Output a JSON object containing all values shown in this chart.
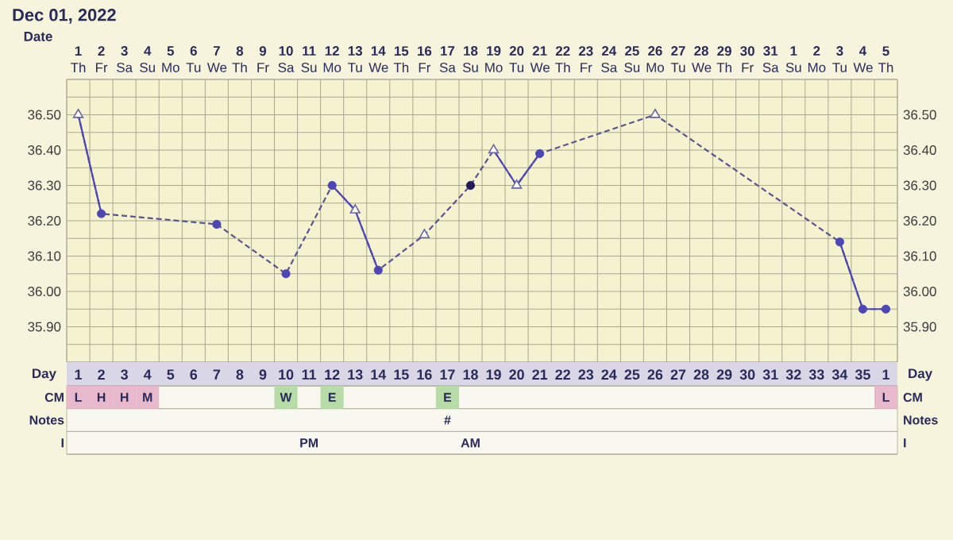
{
  "chart_data": [
    {
      "type": "line",
      "title": "Dec 01, 2022",
      "xlabel": "Date",
      "categories": [
        "**1** Th",
        "**2** Fr",
        "**3** Sa",
        "**4** Su",
        "**5** Mo",
        "**6** Tu",
        "**7** We",
        "**8** Th",
        "**9** Fr",
        "**10** Sa",
        "**11** Su",
        "**12** Mo",
        "**13** Tu",
        "**14** We",
        "**15** Th",
        "**16** Fr",
        "**17** Sa",
        "**18** Su",
        "**19** Mo",
        "**20** Tu",
        "**21** We",
        "**22** Th",
        "**23** Fr",
        "**24** Sa",
        "**25** Su",
        "**26** Mo",
        "**27** Tu",
        "**28** We",
        "**29** Th",
        "**30** Fr",
        "**31** Sa",
        "**1** Su",
        "**2** Mo",
        "**3** Tu",
        "**4** We",
        "**5** Th"
      ],
      "ylim": [
        35.8,
        36.6
      ],
      "y2lim": [
        35.8,
        36.6
      ],
      "yticks": [
        {
          "value": 35.8,
          "label": null
        },
        {
          "value": 35.85,
          "label": null
        },
        {
          "value": 35.9,
          "label": "35.90"
        },
        {
          "value": 35.95,
          "label": null
        },
        {
          "value": 36.0,
          "label": "36.00"
        },
        {
          "value": 36.05,
          "label": null
        },
        {
          "value": 36.1,
          "label": "36.10"
        },
        {
          "value": 36.15,
          "label": null
        },
        {
          "value": 36.2,
          "label": "36.20"
        },
        {
          "value": 36.25,
          "label": null
        },
        {
          "value": 36.3,
          "label": "36.30"
        },
        {
          "value": 36.35,
          "label": null
        },
        {
          "value": 36.4,
          "label": "36.40"
        },
        {
          "value": 36.45,
          "label": null
        },
        {
          "value": 36.5,
          "label": "36.50"
        },
        {
          "value": 36.55,
          "label": null
        },
        {
          "value": 36.6,
          "label": null
        }
      ],
      "y2ticks": [
        {
          "value": 35.8,
          "label": null
        },
        {
          "value": 35.85,
          "label": null
        },
        {
          "value": 35.9,
          "label": "35.90"
        },
        {
          "value": 35.95,
          "label": null
        },
        {
          "value": 36.0,
          "label": "36.00"
        },
        {
          "value": 36.05,
          "label": null
        },
        {
          "value": 36.1,
          "label": "36.10"
        },
        {
          "value": 36.15,
          "label": null
        },
        {
          "value": 36.2,
          "label": "36.20"
        },
        {
          "value": 36.25,
          "label": null
        },
        {
          "value": 36.3,
          "label": "36.30"
        },
        {
          "value": 36.35,
          "label": null
        },
        {
          "value": 36.4,
          "label": "36.40"
        },
        {
          "value": 36.45,
          "label": null
        },
        {
          "value": 36.5,
          "label": "36.50"
        },
        {
          "value": 36.55,
          "label": null
        },
        {
          "value": 36.6,
          "label": null
        }
      ],
      "grid": true,
      "series": [
        {
          "type": "line",
          "line_style": "dashed",
          "marker": "none",
          "color": "#5a5490",
          "values": [
            36.5,
            36.22,
            null,
            null,
            null,
            null,
            36.19,
            null,
            null,
            36.05,
            null,
            36.3,
            36.23,
            36.06,
            null,
            36.16,
            null,
            36.3,
            36.4,
            36.3,
            36.39,
            null,
            null,
            null,
            null,
            36.5,
            null,
            null,
            null,
            null,
            null,
            null,
            null,
            36.14,
            35.95,
            35.95
          ]
        },
        {
          "type": "line",
          "line_style": "solid",
          "marker": "none",
          "color": "#4e46b4",
          "values": [
            36.5,
            36.22,
            null,
            null,
            null,
            null,
            null,
            null,
            null,
            null,
            null,
            36.3,
            36.23,
            36.06,
            null,
            null,
            null,
            null,
            36.4,
            36.3,
            36.39,
            null,
            null,
            null,
            null,
            null,
            null,
            null,
            null,
            null,
            null,
            null,
            null,
            36.14,
            35.95,
            35.95
          ]
        },
        {
          "type": "scatter",
          "marker": "circle",
          "color": "#4e46b4",
          "values": [
            null,
            36.22,
            null,
            null,
            null,
            null,
            36.19,
            null,
            null,
            36.05,
            null,
            36.3,
            null,
            36.06,
            null,
            null,
            null,
            null,
            null,
            null,
            36.39,
            null,
            null,
            null,
            null,
            null,
            null,
            null,
            null,
            null,
            null,
            null,
            null,
            36.14,
            35.95,
            35.95
          ]
        },
        {
          "type": "scatter",
          "marker": "triangle",
          "color": "#6a64a8",
          "values": [
            36.5,
            null,
            null,
            null,
            null,
            null,
            null,
            null,
            null,
            null,
            null,
            null,
            36.23,
            null,
            null,
            36.16,
            null,
            null,
            36.4,
            36.3,
            null,
            null,
            null,
            null,
            null,
            36.5,
            null,
            null,
            null,
            null,
            null,
            null,
            null,
            null,
            null,
            null
          ]
        },
        {
          "type": "scatter",
          "marker": "circle",
          "color": "#231a55",
          "values": [
            null,
            null,
            null,
            null,
            null,
            null,
            null,
            null,
            null,
            null,
            null,
            null,
            null,
            null,
            null,
            null,
            null,
            36.3,
            null,
            null,
            null,
            null,
            null,
            null,
            null,
            null,
            null,
            null,
            null,
            null,
            null,
            null,
            null,
            null,
            null,
            null
          ]
        }
      ]
    },
    {
      "type": "heatmap",
      "xlabel": "Day",
      "categories": [
        "1",
        "2",
        "3",
        "4",
        "5",
        "6",
        "7",
        "8",
        "9",
        "10",
        "11",
        "12",
        "13",
        "14",
        "15",
        "16",
        "17",
        "18",
        "19",
        "20",
        "21",
        "22",
        "23",
        "24",
        "25",
        "26",
        "27",
        "28",
        "29",
        "30",
        "31",
        "32",
        "33",
        "34",
        "35",
        "1"
      ],
      "y_categories": [
        "CM",
        "Notes",
        "I"
      ],
      "y2_categories": [
        "CM",
        "Notes",
        "I"
      ],
      "colors": [
        [
          "#e8b8cc",
          "#e8b8cc",
          "#e8b8cc",
          "#e8b8cc",
          null,
          null,
          null,
          null,
          null,
          "#b8dca8",
          null,
          "#b8dca8",
          null,
          null,
          null,
          null,
          "#b8dca8",
          null,
          null,
          null,
          null,
          null,
          null,
          null,
          null,
          null,
          null,
          null,
          null,
          null,
          null,
          null,
          null,
          null,
          null,
          "#e8b8cc"
        ],
        [
          null,
          null,
          null,
          null,
          null,
          null,
          null,
          null,
          null,
          null,
          null,
          null,
          null,
          null,
          null,
          null,
          null,
          null,
          null,
          null,
          null,
          null,
          null,
          null,
          null,
          null,
          null,
          null,
          null,
          null,
          null,
          null,
          null,
          null,
          null,
          null
        ],
        [
          null,
          null,
          null,
          null,
          null,
          null,
          null,
          null,
          null,
          null,
          null,
          null,
          null,
          null,
          null,
          null,
          null,
          null,
          null,
          null,
          null,
          null,
          null,
          null,
          null,
          null,
          null,
          null,
          null,
          null,
          null,
          null,
          null,
          null,
          null,
          null
        ]
      ],
      "cells": [
        [
          null,
          null,
          null,
          null,
          null,
          null,
          null,
          null,
          null,
          null,
          null,
          null,
          null,
          null,
          null,
          null,
          null,
          null,
          null,
          null,
          null,
          null,
          null,
          null,
          null,
          null,
          null,
          null,
          null,
          null,
          null,
          null,
          null,
          null,
          null,
          null
        ],
        [
          null,
          null,
          null,
          null,
          null,
          null,
          null,
          null,
          null,
          null,
          null,
          null,
          null,
          null,
          null,
          null,
          null,
          null,
          null,
          null,
          null,
          null,
          null,
          null,
          null,
          null,
          null,
          null,
          null,
          null,
          null,
          null,
          null,
          null,
          null,
          null
        ],
        [
          null,
          null,
          null,
          null,
          null,
          null,
          null,
          null,
          null,
          null,
          null,
          null,
          null,
          null,
          null,
          null,
          null,
          null,
          null,
          null,
          null,
          null,
          null,
          null,
          null,
          null,
          null,
          null,
          null,
          null,
          null,
          null,
          null,
          null,
          null,
          null
        ]
      ],
      "cell_labels": [
        [
          "L",
          "H",
          "H",
          "M",
          null,
          null,
          null,
          null,
          null,
          "W",
          null,
          "E",
          null,
          null,
          null,
          null,
          "E",
          null,
          null,
          null,
          null,
          null,
          null,
          null,
          null,
          null,
          null,
          null,
          null,
          null,
          null,
          null,
          null,
          null,
          null,
          "L"
        ],
        [
          null,
          null,
          null,
          null,
          null,
          null,
          null,
          null,
          null,
          null,
          null,
          null,
          null,
          null,
          null,
          null,
          "#",
          null,
          null,
          null,
          null,
          null,
          null,
          null,
          null,
          null,
          null,
          null,
          null,
          null,
          null,
          null,
          null,
          null,
          null,
          null
        ],
        [
          null,
          null,
          null,
          null,
          null,
          null,
          null,
          null,
          null,
          null,
          "PM",
          null,
          null,
          null,
          null,
          null,
          null,
          "AM",
          null,
          null,
          null,
          null,
          null,
          null,
          null,
          null,
          null,
          null,
          null,
          null,
          null,
          null,
          null,
          null,
          null,
          null
        ]
      ]
    }
  ]
}
